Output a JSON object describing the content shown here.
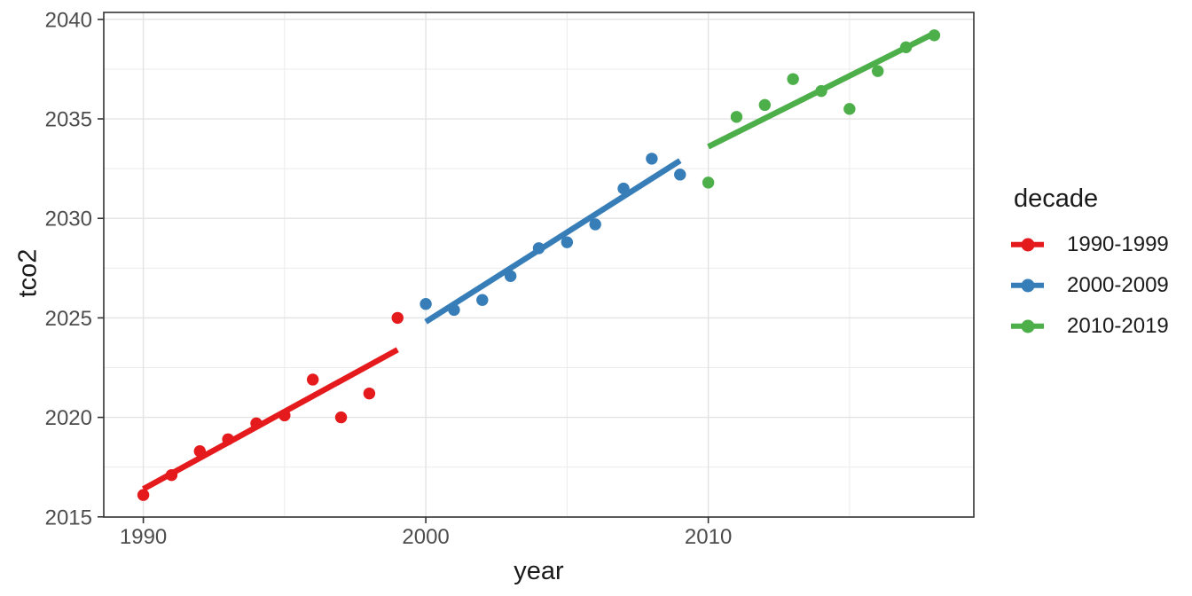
{
  "chart_data": {
    "type": "scatter",
    "title": "",
    "xlabel": "year",
    "ylabel": "tco2",
    "legend_title": "decade",
    "legend_position": "right",
    "grid": true,
    "xlim": [
      1988.6,
      2019.4
    ],
    "ylim": [
      2014.99,
      2040.35
    ],
    "x_ticks": [
      1990,
      2000,
      2010
    ],
    "x_minor_ticks": [
      1995,
      2005,
      2015
    ],
    "y_ticks": [
      2015,
      2020,
      2025,
      2030,
      2035,
      2040
    ],
    "y_minor_ticks": [
      2017.5,
      2022.5,
      2027.5,
      2032.5,
      2037.5
    ],
    "series": [
      {
        "name": "1990-1999",
        "color": "#E41A1C",
        "x": [
          1990,
          1991,
          1992,
          1993,
          1994,
          1995,
          1996,
          1997,
          1998,
          1999
        ],
        "y": [
          2016.1,
          2017.1,
          2018.3,
          2018.9,
          2019.7,
          2020.1,
          2021.9,
          2020.0,
          2021.2,
          2025.0
        ],
        "trend_line": {
          "x1": 1990,
          "y1": 2016.4,
          "x2": 1999,
          "y2": 2023.4
        }
      },
      {
        "name": "2000-2009",
        "color": "#377EB8",
        "x": [
          2000,
          2001,
          2002,
          2003,
          2004,
          2005,
          2006,
          2007,
          2008,
          2009
        ],
        "y": [
          2025.7,
          2025.4,
          2025.9,
          2027.1,
          2028.5,
          2028.8,
          2029.7,
          2031.5,
          2033.0,
          2032.2
        ],
        "trend_line": {
          "x1": 2000,
          "y1": 2024.8,
          "x2": 2009,
          "y2": 2032.9
        }
      },
      {
        "name": "2010-2019",
        "color": "#4DAF4A",
        "x": [
          2010,
          2011,
          2012,
          2013,
          2014,
          2015,
          2016,
          2017,
          2018
        ],
        "y": [
          2031.8,
          2035.1,
          2035.7,
          2037.0,
          2036.4,
          2035.5,
          2037.4,
          2038.6,
          2039.2
        ],
        "trend_line": {
          "x1": 2010,
          "y1": 2033.6,
          "x2": 2018,
          "y2": 2039.3
        }
      }
    ],
    "colors": {
      "background": "#ffffff",
      "panel_background": "#ffffff",
      "panel_border": "#333333",
      "grid_major": "#e3e3e3",
      "grid_minor": "#ebebeb",
      "tick_mark": "#333333",
      "tick_label": "#4d4d4d",
      "axis_title": "#1a1a1a",
      "legend_text": "#1a1a1a"
    }
  }
}
